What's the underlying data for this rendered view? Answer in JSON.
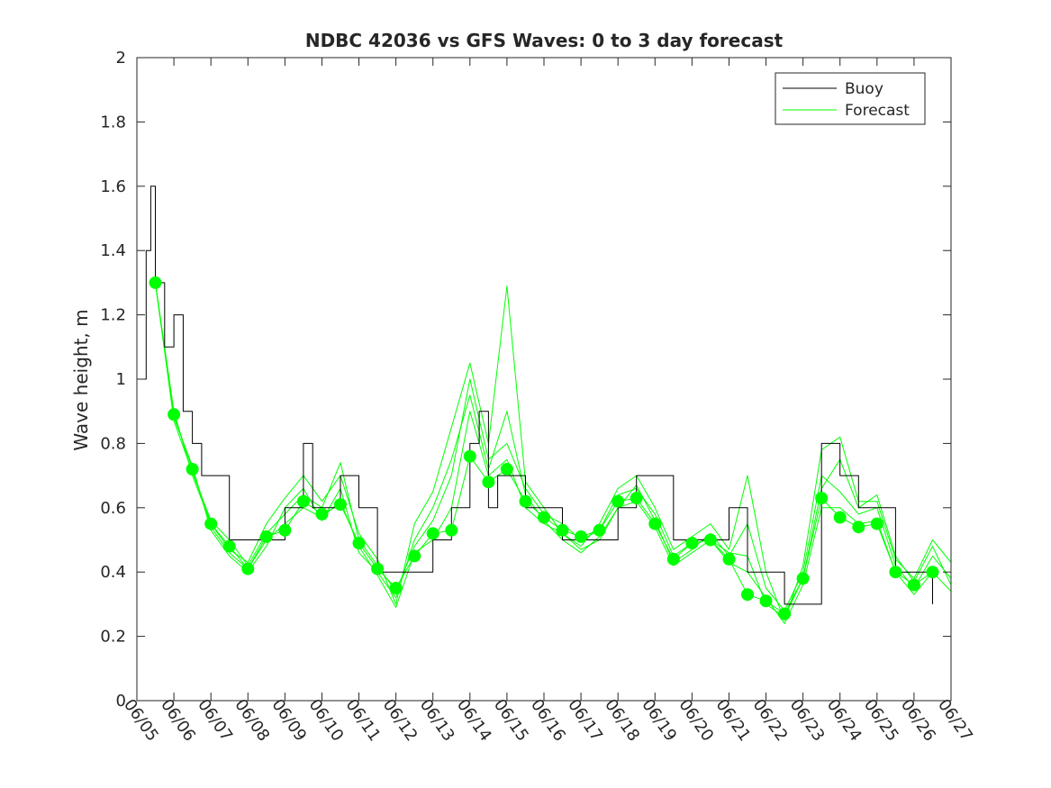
{
  "chart_data": {
    "type": "line",
    "title": "NDBC 42036 vs GFS Waves: 0 to 3 day forecast",
    "xlabel": "",
    "ylabel": "Wave height, m",
    "xlim": [
      "06/05",
      "06/27"
    ],
    "ylim": [
      0,
      2
    ],
    "x_ticks": [
      "06/05",
      "06/06",
      "06/07",
      "06/08",
      "06/09",
      "06/10",
      "06/11",
      "06/12",
      "06/13",
      "06/14",
      "06/15",
      "06/16",
      "06/17",
      "06/18",
      "06/19",
      "06/20",
      "06/21",
      "06/22",
      "06/23",
      "06/24",
      "06/25",
      "06/26",
      "06/27"
    ],
    "y_ticks": [
      "0",
      "0.2",
      "0.4",
      "0.6",
      "0.8",
      "1",
      "1.2",
      "1.4",
      "1.6",
      "1.8",
      "2"
    ],
    "grid": false,
    "legend": {
      "position": "top-right",
      "entries": [
        "Buoy",
        "Forecast"
      ]
    },
    "colors": {
      "buoy": "#000000",
      "forecast": "#00ff00",
      "axis": "#262626"
    },
    "series": [
      {
        "name": "Buoy",
        "x": [
          "06/05 00:00",
          "06/05 06:00",
          "06/05 09:00",
          "06/05 12:00",
          "06/05 18:00",
          "06/06 00:00",
          "06/06 06:00",
          "06/06 12:00",
          "06/06 18:00",
          "06/07 00:00",
          "06/07 12:00",
          "06/08 00:00",
          "06/08 12:00",
          "06/09 00:00",
          "06/09 06:00",
          "06/09 12:00",
          "06/09 18:00",
          "06/10 00:00",
          "06/10 12:00",
          "06/11 00:00",
          "06/11 12:00",
          "06/12 00:00",
          "06/12 12:00",
          "06/13 00:00",
          "06/13 12:00",
          "06/14 00:00",
          "06/14 06:00",
          "06/14 12:00",
          "06/14 18:00",
          "06/15 00:00",
          "06/15 12:00",
          "06/16 00:00",
          "06/16 12:00",
          "06/17 00:00",
          "06/17 12:00",
          "06/18 00:00",
          "06/18 12:00",
          "06/19 00:00",
          "06/19 12:00",
          "06/20 00:00",
          "06/20 12:00",
          "06/21 00:00",
          "06/21 12:00",
          "06/22 00:00",
          "06/22 12:00",
          "06/23 00:00",
          "06/23 12:00",
          "06/24 00:00",
          "06/24 12:00",
          "06/25 00:00",
          "06/25 12:00",
          "06/26 00:00",
          "06/26 12:00"
        ],
        "values": [
          1.0,
          1.4,
          1.6,
          1.3,
          1.1,
          1.2,
          0.9,
          0.8,
          0.7,
          0.7,
          0.5,
          0.5,
          0.5,
          0.6,
          0.6,
          0.8,
          0.6,
          0.6,
          0.7,
          0.6,
          0.4,
          0.4,
          0.4,
          0.5,
          0.6,
          0.8,
          0.9,
          0.6,
          0.7,
          0.7,
          0.6,
          0.6,
          0.5,
          0.5,
          0.5,
          0.6,
          0.7,
          0.7,
          0.5,
          0.5,
          0.5,
          0.6,
          0.4,
          0.4,
          0.3,
          0.3,
          0.8,
          0.7,
          0.6,
          0.6,
          0.4,
          0.4,
          0.3
        ]
      },
      {
        "name": "Forecast",
        "x": [
          "06/05 12:00",
          "06/06 00:00",
          "06/06 12:00",
          "06/07 00:00",
          "06/07 12:00",
          "06/08 00:00",
          "06/08 12:00",
          "06/09 00:00",
          "06/09 12:00",
          "06/10 00:00",
          "06/10 12:00",
          "06/11 00:00",
          "06/11 12:00",
          "06/12 00:00",
          "06/12 12:00",
          "06/13 00:00",
          "06/13 12:00",
          "06/14 00:00",
          "06/14 12:00",
          "06/15 00:00",
          "06/15 12:00",
          "06/16 00:00",
          "06/16 12:00",
          "06/17 00:00",
          "06/17 12:00",
          "06/18 00:00",
          "06/18 12:00",
          "06/19 00:00",
          "06/19 12:00",
          "06/20 00:00",
          "06/20 12:00",
          "06/21 00:00",
          "06/21 12:00",
          "06/22 00:00",
          "06/22 12:00",
          "06/23 00:00",
          "06/23 12:00",
          "06/24 00:00",
          "06/24 12:00",
          "06/25 00:00",
          "06/25 12:00",
          "06/26 00:00",
          "06/26 12:00"
        ],
        "values": [
          1.3,
          0.89,
          0.72,
          0.55,
          0.48,
          0.41,
          0.51,
          0.53,
          0.62,
          0.58,
          0.61,
          0.49,
          0.41,
          0.35,
          0.45,
          0.52,
          0.53,
          0.76,
          0.68,
          0.72,
          0.62,
          0.57,
          0.53,
          0.51,
          0.53,
          0.62,
          0.63,
          0.55,
          0.44,
          0.49,
          0.5,
          0.44,
          0.33,
          0.31,
          0.27,
          0.38,
          0.63,
          0.57,
          0.54,
          0.55,
          0.4,
          0.36,
          0.4
        ]
      },
      {
        "name": "",
        "role": "forecast-run",
        "x": [
          "06/05 12:00",
          "06/06 00:00",
          "06/06 12:00",
          "06/07 00:00",
          "06/07 12:00",
          "06/08 00:00",
          "06/08 12:00",
          "06/09 00:00",
          "06/09 12:00",
          "06/10 00:00",
          "06/10 12:00",
          "06/11 00:00",
          "06/11 12:00",
          "06/12 00:00",
          "06/12 12:00",
          "06/13 00:00",
          "06/13 12:00",
          "06/14 00:00",
          "06/14 12:00",
          "06/15 00:00",
          "06/15 12:00",
          "06/16 00:00",
          "06/16 12:00",
          "06/17 00:00",
          "06/17 12:00",
          "06/18 00:00",
          "06/18 12:00",
          "06/19 00:00",
          "06/19 12:00",
          "06/20 00:00",
          "06/20 12:00",
          "06/21 00:00",
          "06/21 12:00",
          "06/22 00:00",
          "06/22 12:00",
          "06/23 00:00",
          "06/23 12:00",
          "06/24 00:00",
          "06/24 12:00",
          "06/25 00:00",
          "06/25 12:00",
          "06/26 00:00",
          "06/26 12:00",
          "06/27 00:00"
        ],
        "values": [
          1.3,
          0.9,
          0.7,
          0.55,
          0.47,
          0.43,
          0.55,
          0.63,
          0.7,
          0.62,
          0.7,
          0.52,
          0.44,
          0.3,
          0.55,
          0.65,
          0.85,
          1.05,
          0.8,
          1.29,
          0.68,
          0.6,
          0.52,
          0.48,
          0.55,
          0.66,
          0.7,
          0.6,
          0.47,
          0.51,
          0.55,
          0.47,
          0.7,
          0.4,
          0.25,
          0.42,
          0.78,
          0.82,
          0.62,
          0.62,
          0.44,
          0.38,
          0.5,
          0.43
        ]
      },
      {
        "name": "",
        "role": "forecast-run",
        "x": [
          "06/05 12:00",
          "06/06 00:00",
          "06/06 12:00",
          "06/07 00:00",
          "06/07 12:00",
          "06/08 00:00",
          "06/08 12:00",
          "06/09 00:00",
          "06/09 12:00",
          "06/10 00:00",
          "06/10 12:00",
          "06/11 00:00",
          "06/11 12:00",
          "06/12 00:00",
          "06/12 12:00",
          "06/13 00:00",
          "06/13 12:00",
          "06/14 00:00",
          "06/14 12:00",
          "06/15 00:00",
          "06/15 12:00",
          "06/16 00:00",
          "06/16 12:00",
          "06/17 00:00",
          "06/17 12:00",
          "06/18 00:00",
          "06/18 12:00",
          "06/19 00:00",
          "06/19 12:00",
          "06/20 00:00",
          "06/20 12:00",
          "06/21 00:00",
          "06/21 12:00",
          "06/22 00:00",
          "06/22 12:00",
          "06/23 00:00",
          "06/23 12:00",
          "06/24 00:00",
          "06/24 12:00",
          "06/25 00:00",
          "06/25 12:00",
          "06/26 00:00",
          "06/26 12:00",
          "06/27 00:00"
        ],
        "values": [
          1.3,
          0.88,
          0.73,
          0.53,
          0.45,
          0.4,
          0.48,
          0.6,
          0.66,
          0.56,
          0.66,
          0.46,
          0.4,
          0.32,
          0.5,
          0.6,
          0.75,
          0.95,
          0.72,
          0.9,
          0.64,
          0.56,
          0.5,
          0.46,
          0.51,
          0.6,
          0.67,
          0.56,
          0.43,
          0.47,
          0.52,
          0.45,
          0.55,
          0.35,
          0.28,
          0.4,
          0.7,
          0.65,
          0.58,
          0.6,
          0.42,
          0.35,
          0.45,
          0.38
        ]
      },
      {
        "name": "",
        "role": "forecast-run",
        "x": [
          "06/05 12:00",
          "06/06 00:00",
          "06/06 12:00",
          "06/07 00:00",
          "06/07 12:00",
          "06/08 00:00",
          "06/08 12:00",
          "06/09 00:00",
          "06/09 12:00",
          "06/10 00:00",
          "06/10 12:00",
          "06/11 00:00",
          "06/11 12:00",
          "06/12 00:00",
          "06/12 12:00",
          "06/13 00:00",
          "06/13 12:00",
          "06/14 00:00",
          "06/14 12:00",
          "06/15 00:00",
          "06/15 12:00",
          "06/16 00:00",
          "06/16 12:00",
          "06/17 00:00",
          "06/17 12:00",
          "06/18 00:00",
          "06/18 12:00",
          "06/19 00:00",
          "06/19 12:00",
          "06/20 00:00",
          "06/20 12:00",
          "06/21 00:00",
          "06/21 12:00",
          "06/22 00:00",
          "06/22 12:00",
          "06/23 00:00",
          "06/23 12:00",
          "06/24 00:00",
          "06/24 12:00",
          "06/25 00:00",
          "06/25 12:00",
          "06/26 00:00",
          "06/26 12:00",
          "06/27 00:00"
        ],
        "values": [
          1.3,
          0.87,
          0.71,
          0.56,
          0.5,
          0.42,
          0.52,
          0.58,
          0.64,
          0.6,
          0.74,
          0.5,
          0.42,
          0.34,
          0.48,
          0.56,
          0.7,
          1.0,
          0.75,
          0.8,
          0.66,
          0.58,
          0.55,
          0.5,
          0.53,
          0.64,
          0.66,
          0.58,
          0.45,
          0.49,
          0.5,
          0.46,
          0.45,
          0.3,
          0.26,
          0.38,
          0.66,
          0.75,
          0.6,
          0.64,
          0.45,
          0.37,
          0.48,
          0.36
        ]
      },
      {
        "name": "",
        "role": "forecast-run",
        "x": [
          "06/05 12:00",
          "06/06 00:00",
          "06/06 12:00",
          "06/07 00:00",
          "06/07 12:00",
          "06/08 00:00",
          "06/08 12:00",
          "06/09 00:00",
          "06/09 12:00",
          "06/10 00:00",
          "06/10 12:00",
          "06/11 00:00",
          "06/11 12:00",
          "06/12 00:00",
          "06/12 12:00",
          "06/13 00:00",
          "06/13 12:00",
          "06/14 00:00",
          "06/14 12:00",
          "06/15 00:00",
          "06/15 12:00",
          "06/16 00:00",
          "06/16 12:00",
          "06/17 00:00",
          "06/17 12:00",
          "06/18 00:00",
          "06/18 12:00",
          "06/19 00:00",
          "06/19 12:00",
          "06/20 00:00",
          "06/20 12:00",
          "06/21 00:00",
          "06/21 12:00",
          "06/22 00:00",
          "06/22 12:00",
          "06/23 00:00",
          "06/23 12:00",
          "06/24 00:00",
          "06/24 12:00",
          "06/25 00:00",
          "06/25 12:00",
          "06/26 00:00",
          "06/26 12:00",
          "06/27 00:00"
        ],
        "values": [
          1.3,
          0.89,
          0.72,
          0.54,
          0.46,
          0.41,
          0.5,
          0.55,
          0.6,
          0.57,
          0.62,
          0.48,
          0.39,
          0.29,
          0.46,
          0.5,
          0.6,
          0.9,
          0.7,
          0.75,
          0.6,
          0.55,
          0.52,
          0.47,
          0.5,
          0.6,
          0.62,
          0.54,
          0.42,
          0.46,
          0.5,
          0.43,
          0.4,
          0.32,
          0.24,
          0.36,
          0.6,
          0.6,
          0.55,
          0.56,
          0.4,
          0.33,
          0.4,
          0.34
        ]
      }
    ]
  }
}
